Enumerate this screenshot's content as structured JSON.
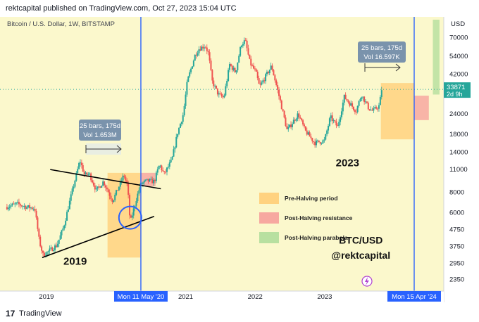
{
  "header": {
    "publish_line": "rektcapital published on TradingView.com, Oct 27, 2023 15:04 UTC"
  },
  "footer": {
    "logo_glyph": "17",
    "brand": "TradingView"
  },
  "colors": {
    "background": "#fbf8cc",
    "pre_halving": "#ffd27f",
    "post_halving_resistance": "#f7a8a0",
    "post_halving_parabola": "#b8e0a0",
    "candle_up": "#26a69a",
    "candle_down": "#ef5350",
    "halving_line": "#2962ff",
    "price_label_bg": "#26a69a",
    "measure_box": "#6b87a8"
  },
  "chart_data": {
    "type": "candlestick",
    "title": "Bitcoin / U.S. Dollar, 1W, BITSTAMP",
    "y_scale": "log",
    "ylim": [
      2000,
      90000
    ],
    "y_axis_unit": "USD",
    "y_ticks": [
      70000,
      54000,
      42000,
      24000,
      18000,
      14000,
      11000,
      8000,
      6000,
      4750,
      3750,
      2950,
      2350
    ],
    "x_ticks": [
      {
        "label": "2019",
        "date": "2019-01-01"
      },
      {
        "label": "2021",
        "date": "2021-01-01"
      },
      {
        "label": "2022",
        "date": "2022-01-01"
      },
      {
        "label": "2023",
        "date": "2023-01-01"
      }
    ],
    "last_price": {
      "value": "33871",
      "countdown": "2d 9h"
    },
    "halving_markers": [
      {
        "label": "Mon 11 May '20",
        "date": "2020-05-11"
      },
      {
        "label": "Mon 15 Apr '24",
        "date": "2024-04-15"
      }
    ],
    "measurements": [
      {
        "line1": "25 bars, 175d",
        "line2": "Vol 1.653M"
      },
      {
        "line1": "25 bars, 175d",
        "line2": "Vol 16.597K"
      }
    ],
    "zones": [
      {
        "type": "pre-halving",
        "from": "2019-11-18",
        "to": "2020-05-11",
        "low": 3200,
        "high": 10500
      },
      {
        "type": "post-halving-resistance",
        "from": "2020-05-11",
        "to": "2020-07-27",
        "low": 8700,
        "high": 10500
      },
      {
        "type": "pre-halving",
        "from": "2023-10-23",
        "to": "2024-04-15",
        "low": 16800,
        "high": 37000
      },
      {
        "type": "post-halving-resistance",
        "from": "2024-04-15",
        "to": "2024-07-01",
        "low": 22000,
        "high": 31000
      },
      {
        "type": "post-halving-parabola",
        "from": "2024-07-22",
        "to": "2024-08-26",
        "low": 31500,
        "high": 90000
      }
    ],
    "trendlines": [
      {
        "from": {
          "date": "2018-12-10",
          "price": 3200
        },
        "to": {
          "date": "2020-07-20",
          "price": 5700
        }
      },
      {
        "from": {
          "date": "2019-01-21",
          "price": 11000
        },
        "to": {
          "date": "2020-08-24",
          "price": 8400
        }
      }
    ],
    "legend": [
      {
        "label": "Pre-Halving period",
        "zone": "pre-halving"
      },
      {
        "label": "Post-Halving resistance",
        "zone": "post-halving-resistance"
      },
      {
        "label": "Post-Halving parabola",
        "zone": "post-halving-parabola"
      }
    ],
    "annotations": [
      {
        "text": "2019",
        "date": "2019-06-01",
        "price": 2900
      },
      {
        "text": "2023",
        "date": "2023-05-01",
        "price": 11500
      },
      {
        "text": "BTC/USD",
        "date": "2023-07-10",
        "price": 3900
      },
      {
        "text": "@rektcapital",
        "date": "2023-07-10",
        "price": 3150
      }
    ],
    "circle_highlight": {
      "date": "2020-03-16",
      "price": 5600
    },
    "price_series": [
      {
        "date": "2018-06-01",
        "price": 6500
      },
      {
        "date": "2018-08-01",
        "price": 6800
      },
      {
        "date": "2018-09-20",
        "price": 6500
      },
      {
        "date": "2018-11-01",
        "price": 6400
      },
      {
        "date": "2018-11-25",
        "price": 4000
      },
      {
        "date": "2018-12-15",
        "price": 3300
      },
      {
        "date": "2019-01-20",
        "price": 3550
      },
      {
        "date": "2019-02-25",
        "price": 3800
      },
      {
        "date": "2019-04-01",
        "price": 4900
      },
      {
        "date": "2019-05-15",
        "price": 8000
      },
      {
        "date": "2019-06-26",
        "price": 12500
      },
      {
        "date": "2019-07-20",
        "price": 10200
      },
      {
        "date": "2019-08-15",
        "price": 10300
      },
      {
        "date": "2019-09-20",
        "price": 8200
      },
      {
        "date": "2019-10-27",
        "price": 9300
      },
      {
        "date": "2019-12-15",
        "price": 7100
      },
      {
        "date": "2020-02-12",
        "price": 10200
      },
      {
        "date": "2020-03-02",
        "price": 8700
      },
      {
        "date": "2020-03-16",
        "price": 5200
      },
      {
        "date": "2020-04-20",
        "price": 7500
      },
      {
        "date": "2020-05-11",
        "price": 9000
      },
      {
        "date": "2020-06-15",
        "price": 9400
      },
      {
        "date": "2020-07-20",
        "price": 9300
      },
      {
        "date": "2020-08-17",
        "price": 11800
      },
      {
        "date": "2020-09-10",
        "price": 10300
      },
      {
        "date": "2020-10-20",
        "price": 12500
      },
      {
        "date": "2020-11-20",
        "price": 18500
      },
      {
        "date": "2020-12-20",
        "price": 24000
      },
      {
        "date": "2021-01-10",
        "price": 38000
      },
      {
        "date": "2021-02-20",
        "price": 55000
      },
      {
        "date": "2021-03-13",
        "price": 60000
      },
      {
        "date": "2021-04-14",
        "price": 62500
      },
      {
        "date": "2021-05-01",
        "price": 56000
      },
      {
        "date": "2021-05-20",
        "price": 38000
      },
      {
        "date": "2021-06-22",
        "price": 31500
      },
      {
        "date": "2021-07-20",
        "price": 30000
      },
      {
        "date": "2021-08-20",
        "price": 48000
      },
      {
        "date": "2021-09-20",
        "price": 43000
      },
      {
        "date": "2021-10-20",
        "price": 64000
      },
      {
        "date": "2021-11-10",
        "price": 67000
      },
      {
        "date": "2021-12-05",
        "price": 49000
      },
      {
        "date": "2022-01-05",
        "price": 43000
      },
      {
        "date": "2022-01-24",
        "price": 35000
      },
      {
        "date": "2022-03-28",
        "price": 47000
      },
      {
        "date": "2022-05-12",
        "price": 29000
      },
      {
        "date": "2022-06-18",
        "price": 19000
      },
      {
        "date": "2022-08-15",
        "price": 24000
      },
      {
        "date": "2022-09-20",
        "price": 19000
      },
      {
        "date": "2022-11-09",
        "price": 16000
      },
      {
        "date": "2022-12-31",
        "price": 16500
      },
      {
        "date": "2023-01-31",
        "price": 23000
      },
      {
        "date": "2023-03-10",
        "price": 20000
      },
      {
        "date": "2023-04-14",
        "price": 30500
      },
      {
        "date": "2023-06-15",
        "price": 25000
      },
      {
        "date": "2023-07-13",
        "price": 31500
      },
      {
        "date": "2023-08-20",
        "price": 26000
      },
      {
        "date": "2023-09-11",
        "price": 25000
      },
      {
        "date": "2023-10-15",
        "price": 27000
      },
      {
        "date": "2023-10-27",
        "price": 33871
      }
    ]
  }
}
